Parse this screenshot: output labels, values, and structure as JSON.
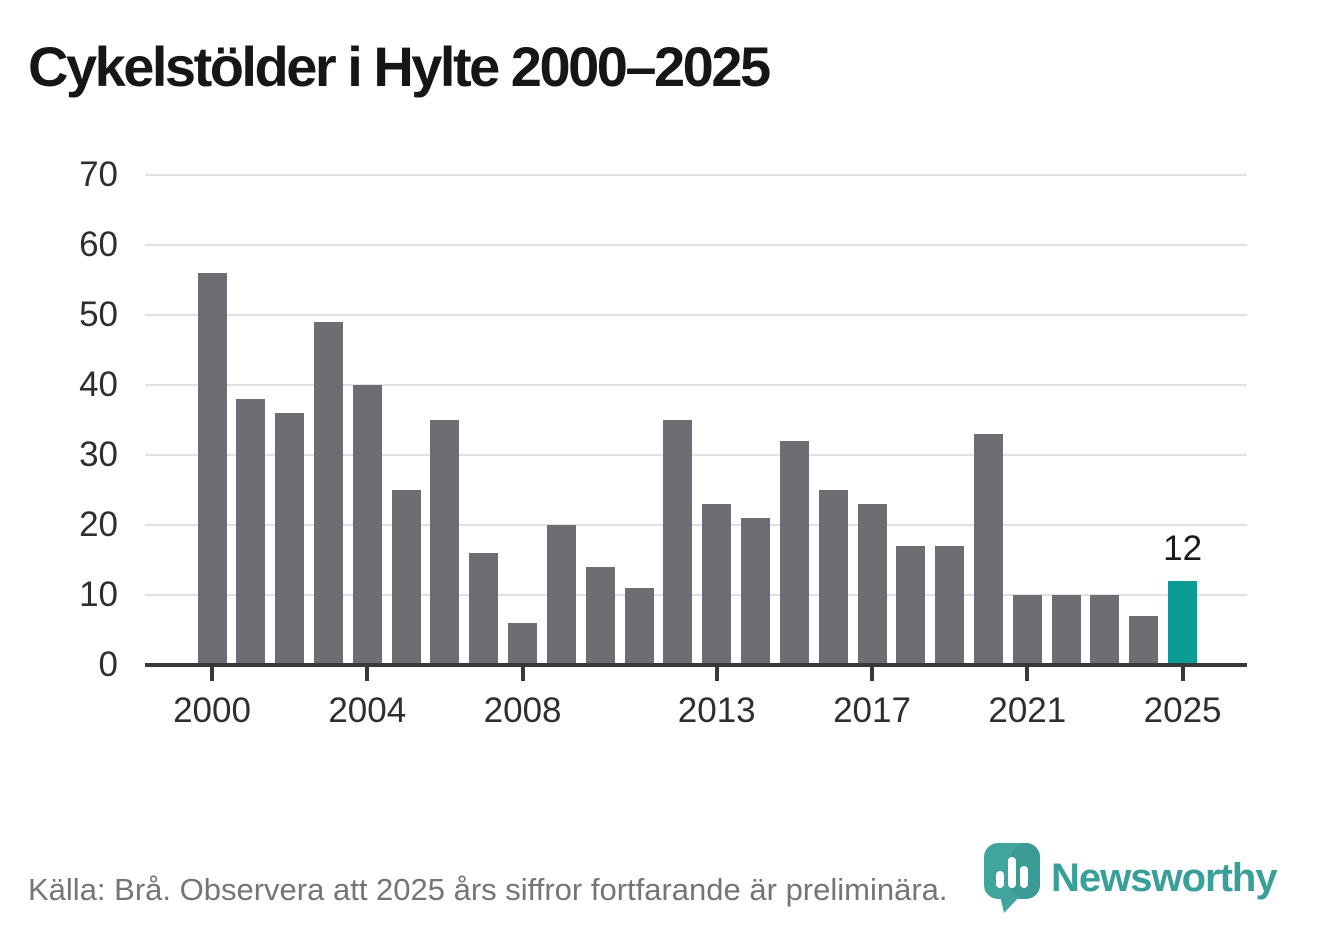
{
  "title": "Cykelstölder i Hylte 2000–2025",
  "footer": {
    "source_note": "Källa: Brå. Observera att 2025 års siffror fortfarande är preliminära."
  },
  "branding": {
    "wordmark": "Newsworthy",
    "logo_icon": "newsworthy-pin-barchart-icon"
  },
  "colors": {
    "bar": "#6d6d72",
    "highlight": "#0a9c95",
    "gridline": "#e2e2e2",
    "axis": "#383838",
    "title_text": "#161616",
    "axis_text": "#2e2e2e",
    "footer_text": "#757575",
    "brand_teal": "#38a099"
  },
  "chart_data": {
    "type": "bar",
    "title": "Cykelstölder i Hylte 2000–2025",
    "x": [
      2000,
      2001,
      2002,
      2003,
      2004,
      2005,
      2006,
      2007,
      2008,
      2009,
      2010,
      2011,
      2012,
      2013,
      2014,
      2015,
      2016,
      2017,
      2018,
      2019,
      2020,
      2021,
      2022,
      2023,
      2024,
      2025
    ],
    "values": [
      56,
      38,
      36,
      49,
      40,
      25,
      35,
      16,
      6,
      20,
      14,
      11,
      35,
      23,
      21,
      32,
      25,
      23,
      17,
      17,
      33,
      10,
      10,
      10,
      7,
      12
    ],
    "highlight_index": 25,
    "highlight_label": "12",
    "xticks": [
      2000,
      2004,
      2008,
      2013,
      2017,
      2021,
      2025
    ],
    "yticks": [
      0,
      10,
      20,
      30,
      40,
      50,
      60,
      70
    ],
    "ylim": [
      0,
      70
    ],
    "grid": true,
    "legend": "none",
    "xlabel": "",
    "ylabel": ""
  }
}
